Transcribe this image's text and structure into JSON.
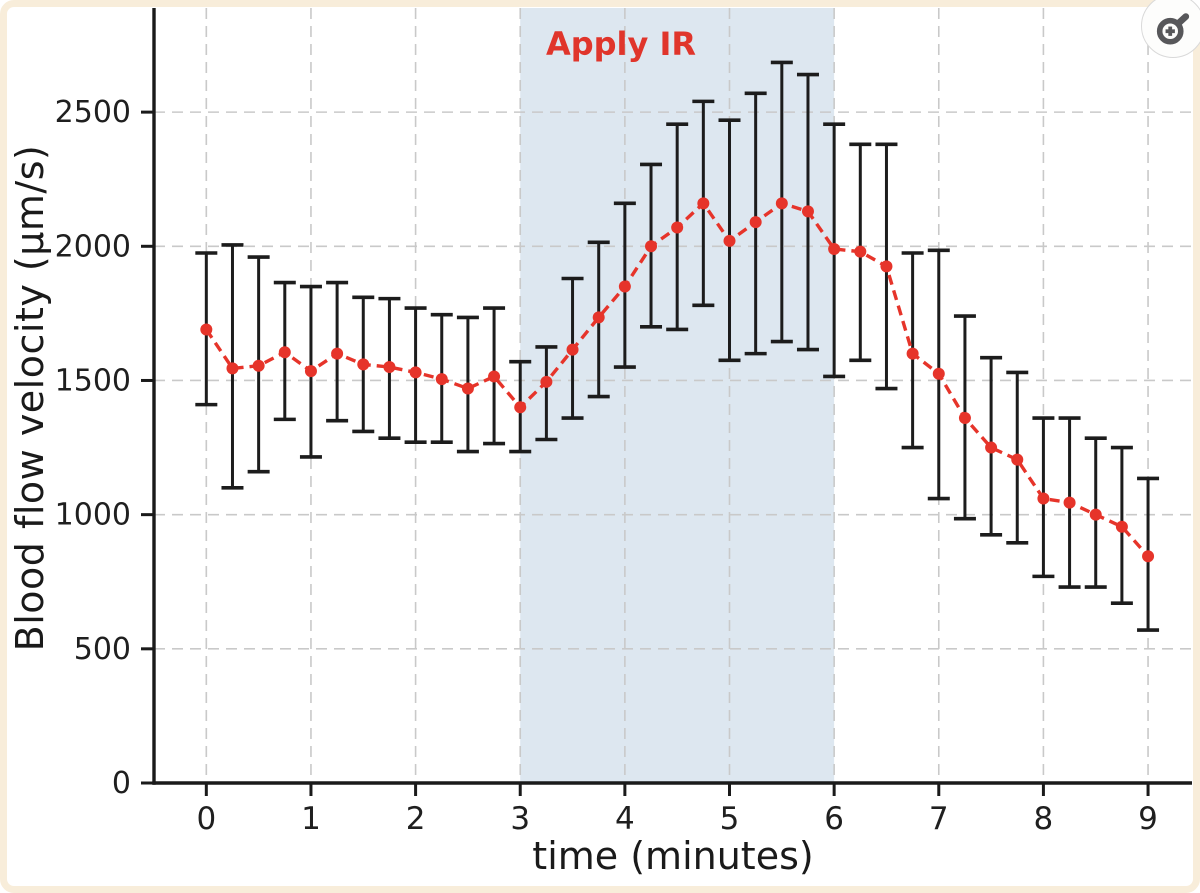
{
  "frame": {
    "border_color": "#f8edda"
  },
  "zoom_button": {
    "icon": "magnifier-plus"
  },
  "chart_data": {
    "type": "line",
    "title": "",
    "xlabel": "time (minutes)",
    "ylabel": "Blood flow velocity (µm/s)",
    "x_ticks": [
      0,
      1,
      2,
      3,
      4,
      5,
      6,
      7,
      8,
      9
    ],
    "y_ticks": [
      0,
      500,
      1000,
      1500,
      2000,
      2500
    ],
    "xlim": [
      -0.5,
      9.42
    ],
    "ylim": [
      0,
      2888
    ],
    "grid": "dashed",
    "legend": "none",
    "shaded_region": {
      "label": "Apply IR",
      "x_start": 3,
      "x_end": 6,
      "color": "#dde7f0",
      "label_color": "#e0352b"
    },
    "colors": {
      "line": "#e6342a",
      "points": "#e6342a",
      "error_bars": "#1c1c1c",
      "grid": "#c9c9c9",
      "axis": "#1a1a1a"
    },
    "series": [
      {
        "name": "blood flow velocity",
        "x": [
          0.0,
          0.25,
          0.5,
          0.75,
          1.0,
          1.25,
          1.5,
          1.75,
          2.0,
          2.25,
          2.5,
          2.75,
          3.0,
          3.25,
          3.5,
          3.75,
          4.0,
          4.25,
          4.5,
          4.75,
          5.0,
          5.25,
          5.5,
          5.75,
          6.0,
          6.25,
          6.5,
          6.75,
          7.0,
          7.25,
          7.5,
          7.75,
          8.0,
          8.25,
          8.5,
          8.75,
          9.0
        ],
        "y": [
          1690,
          1545,
          1555,
          1605,
          1535,
          1600,
          1560,
          1550,
          1530,
          1505,
          1470,
          1515,
          1400,
          1495,
          1615,
          1735,
          1850,
          2000,
          2070,
          2160,
          2020,
          2090,
          2160,
          2130,
          1990,
          1980,
          1925,
          1600,
          1525,
          1360,
          1250,
          1205,
          1060,
          1045,
          1000,
          955,
          845
        ],
        "err_low": [
          1410,
          1100,
          1160,
          1355,
          1215,
          1350,
          1310,
          1285,
          1270,
          1270,
          1235,
          1265,
          1235,
          1280,
          1360,
          1440,
          1550,
          1700,
          1690,
          1780,
          1575,
          1600,
          1645,
          1615,
          1515,
          1575,
          1470,
          1250,
          1060,
          985,
          925,
          895,
          770,
          730,
          730,
          670,
          570
        ],
        "err_high": [
          1975,
          2005,
          1960,
          1865,
          1850,
          1865,
          1810,
          1805,
          1770,
          1745,
          1735,
          1770,
          1570,
          1625,
          1880,
          2015,
          2160,
          2305,
          2455,
          2540,
          2470,
          2570,
          2685,
          2640,
          2455,
          2380,
          2380,
          1975,
          1985,
          1740,
          1585,
          1530,
          1360,
          1360,
          1285,
          1250,
          1135
        ]
      }
    ]
  }
}
